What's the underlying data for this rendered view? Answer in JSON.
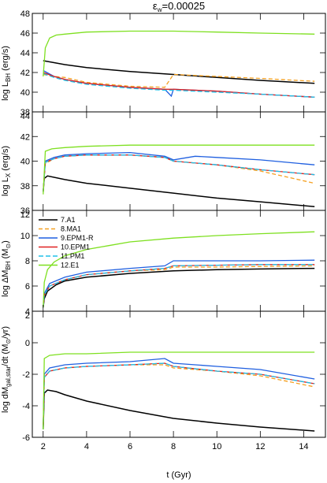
{
  "title": "ε_w=0.00025",
  "title_main": "ε",
  "title_sub": "w",
  "title_rest": "=0.00025",
  "xlabel": "t (Gyr)",
  "xlim": [
    1.5,
    15.0
  ],
  "xticks": [
    2,
    4,
    6,
    8,
    10,
    12,
    14
  ],
  "legend_panel": 2,
  "legend_location": "top-left",
  "chart_data": [
    {
      "type": "line",
      "ylabel": "log L_BH (erg/s)",
      "ylabel_main": "log L",
      "ylabel_sub": "BH",
      "ylabel_rest": " (erg/s)",
      "ylim": [
        38,
        48
      ],
      "yticks": [
        38,
        40,
        42,
        44,
        46,
        48
      ],
      "series": [
        {
          "id": "7.A1",
          "color": "#000000",
          "x": [
            2.0,
            2.5,
            3,
            4,
            6,
            8,
            10,
            12,
            14.5
          ],
          "y": [
            43.2,
            43.0,
            42.8,
            42.5,
            42.1,
            41.8,
            41.5,
            41.2,
            40.9
          ]
        },
        {
          "id": "8.MA1",
          "color": "#f5a020",
          "dash": "5,3",
          "x": [
            2.0,
            2.5,
            3,
            4,
            6,
            7.6,
            8,
            10,
            12,
            14.5
          ],
          "y": [
            41.8,
            41.6,
            41.5,
            41.0,
            40.6,
            40.5,
            41.8,
            41.6,
            41.4,
            41.1
          ]
        },
        {
          "id": "9.EPM1-R",
          "color": "#1f5fe0",
          "x": [
            2.0,
            2.5,
            3,
            4,
            6,
            7.6,
            7.9,
            8,
            10,
            12,
            14.5
          ],
          "y": [
            42.2,
            41.6,
            41.3,
            40.9,
            40.5,
            40.3,
            39.6,
            40.3,
            40.1,
            39.8,
            39.5
          ]
        },
        {
          "id": "10.EPM1",
          "color": "#e02020",
          "x": [
            2.0,
            2.5,
            3,
            4,
            6,
            7.6,
            8,
            10,
            12,
            14.5
          ],
          "y": [
            42.0,
            41.6,
            41.3,
            40.9,
            40.5,
            40.3,
            40.3,
            40.1,
            39.8,
            39.5
          ]
        },
        {
          "id": "11.PM1",
          "color": "#20c0e8",
          "dash": "6,3",
          "x": [
            2.0,
            2.5,
            3,
            4,
            6,
            7.6,
            8,
            10,
            12,
            14.5
          ],
          "y": [
            41.9,
            41.5,
            41.2,
            40.8,
            40.4,
            40.2,
            40.2,
            40.0,
            39.8,
            39.5
          ]
        },
        {
          "id": "12.E1",
          "color": "#7ee020",
          "x": [
            2.0,
            2.1,
            2.3,
            2.6,
            3,
            4,
            6,
            8,
            10,
            12,
            14.5
          ],
          "y": [
            41.6,
            44.5,
            45.5,
            45.8,
            45.9,
            46.1,
            46.2,
            46.2,
            46.1,
            46.0,
            45.9
          ]
        }
      ]
    },
    {
      "type": "line",
      "ylabel": "log L_X (erg/s)",
      "ylabel_main": "log L",
      "ylabel_sub": "X",
      "ylabel_rest": " (erg/s)",
      "ylim": [
        36,
        44
      ],
      "yticks": [
        36,
        38,
        40,
        42,
        44
      ],
      "series": [
        {
          "id": "7.A1",
          "color": "#000000",
          "x": [
            2.0,
            2.05,
            2.2,
            3,
            4,
            6,
            8,
            10,
            12,
            14.5
          ],
          "y": [
            37.5,
            38.6,
            38.8,
            38.5,
            38.2,
            37.8,
            37.4,
            37.0,
            36.7,
            36.3
          ]
        },
        {
          "id": "8.MA1",
          "color": "#f5a020",
          "dash": "5,3",
          "x": [
            2.0,
            2.1,
            2.5,
            3,
            4,
            6,
            7.6,
            8,
            10,
            12,
            14.5
          ],
          "y": [
            37.5,
            39.8,
            40.2,
            40.4,
            40.5,
            40.5,
            40.3,
            40.0,
            39.7,
            39.2,
            38.2
          ]
        },
        {
          "id": "9.EPM1-R",
          "color": "#1f5fe0",
          "x": [
            2.0,
            2.1,
            2.5,
            3,
            4,
            6,
            7.6,
            8,
            9,
            10,
            12,
            14.5
          ],
          "y": [
            37.5,
            40.0,
            40.3,
            40.5,
            40.6,
            40.7,
            40.4,
            40.1,
            40.4,
            40.3,
            40.1,
            39.7
          ]
        },
        {
          "id": "10.EPM1",
          "color": "#e02020",
          "x": [
            2.0,
            2.1,
            2.5,
            3,
            4,
            6,
            7.6,
            8,
            10,
            12,
            14.5
          ],
          "y": [
            37.5,
            39.9,
            40.2,
            40.4,
            40.5,
            40.5,
            40.3,
            40.0,
            39.7,
            39.3,
            38.9
          ]
        },
        {
          "id": "11.PM1",
          "color": "#20c0e8",
          "dash": "6,3",
          "x": [
            2.0,
            2.1,
            2.5,
            3,
            4,
            6,
            7.6,
            8,
            10,
            12,
            14.5
          ],
          "y": [
            37.5,
            39.9,
            40.2,
            40.4,
            40.5,
            40.5,
            40.3,
            40.0,
            39.7,
            39.3,
            38.9
          ]
        },
        {
          "id": "12.E1",
          "color": "#7ee020",
          "x": [
            2.0,
            2.1,
            2.4,
            3,
            4,
            6,
            8,
            10,
            12,
            14.5
          ],
          "y": [
            37.3,
            40.8,
            41.0,
            41.1,
            41.2,
            41.3,
            41.3,
            41.3,
            41.3,
            41.3
          ]
        }
      ]
    },
    {
      "type": "line",
      "ylabel": "log ΔM_BH (M_⊙)",
      "ylabel_main": "log ΔM",
      "ylabel_sub": "BH",
      "ylabel_rest": " (M",
      "ylabel_sub2": "⊙",
      "ylabel_end": ")",
      "ylim": [
        4,
        12
      ],
      "yticks": [
        4,
        6,
        8,
        10,
        12
      ],
      "legend": [
        "7.A1",
        "8.MA1",
        "9.EPM1-R",
        "10.EPM1",
        "11.PM1",
        "12.E1"
      ],
      "series": [
        {
          "id": "7.A1",
          "color": "#000000",
          "x": [
            2.0,
            2.05,
            2.2,
            2.6,
            3,
            4,
            6,
            8,
            10,
            12,
            14.5
          ],
          "y": [
            4.3,
            5.0,
            5.6,
            6.1,
            6.4,
            6.7,
            7.0,
            7.2,
            7.3,
            7.35,
            7.4
          ]
        },
        {
          "id": "8.MA1",
          "color": "#f5a020",
          "dash": "5,3",
          "x": [
            2.0,
            2.05,
            2.3,
            3,
            4,
            6,
            7.6,
            8,
            10,
            12,
            14.5
          ],
          "y": [
            4.3,
            5.3,
            6.0,
            6.5,
            6.9,
            7.2,
            7.3,
            7.5,
            7.5,
            7.55,
            7.6
          ]
        },
        {
          "id": "9.EPM1-R",
          "color": "#1f5fe0",
          "x": [
            2.0,
            2.05,
            2.3,
            3,
            4,
            6,
            7.6,
            8,
            10,
            12,
            14.5
          ],
          "y": [
            4.3,
            5.4,
            6.2,
            6.7,
            7.1,
            7.4,
            7.6,
            8.0,
            8.0,
            8.0,
            8.05
          ]
        },
        {
          "id": "10.EPM1",
          "color": "#e02020",
          "x": [
            2.0,
            2.05,
            2.3,
            3,
            4,
            6,
            7.6,
            8,
            10,
            12,
            14.5
          ],
          "y": [
            4.3,
            5.3,
            6.0,
            6.5,
            6.9,
            7.2,
            7.4,
            7.6,
            7.65,
            7.7,
            7.7
          ]
        },
        {
          "id": "11.PM1",
          "color": "#20c0e8",
          "dash": "6,3",
          "x": [
            2.0,
            2.05,
            2.3,
            3,
            4,
            6,
            7.6,
            8,
            10,
            12,
            14.5
          ],
          "y": [
            4.3,
            5.3,
            6.0,
            6.5,
            6.9,
            7.2,
            7.4,
            7.6,
            7.65,
            7.7,
            7.7
          ]
        },
        {
          "id": "12.E1",
          "color": "#7ee020",
          "x": [
            2.0,
            2.05,
            2.2,
            2.5,
            3,
            4,
            5,
            6,
            8,
            10,
            12,
            14.5
          ],
          "y": [
            4.3,
            6.3,
            7.3,
            7.9,
            8.4,
            8.9,
            9.2,
            9.5,
            9.8,
            10.0,
            10.15,
            10.3
          ]
        }
      ]
    },
    {
      "type": "line",
      "ylabel": "log dM_gal,star/dt (M_⊙/yr)",
      "ylabel_main": "log dM",
      "ylabel_sub": "gal,star",
      "ylabel_rest": "/dt (M",
      "ylabel_sub2": "⊙",
      "ylabel_end": "/yr)",
      "ylim": [
        -6,
        2
      ],
      "yticks": [
        -6,
        -4,
        -2,
        0,
        2
      ],
      "series": [
        {
          "id": "7.A1",
          "color": "#000000",
          "x": [
            2.0,
            2.05,
            2.2,
            2.6,
            3,
            4,
            6,
            8,
            10,
            12,
            14.5
          ],
          "y": [
            -5.5,
            -3.2,
            -3.0,
            -3.1,
            -3.3,
            -3.7,
            -4.3,
            -4.8,
            -5.1,
            -5.35,
            -5.6
          ]
        },
        {
          "id": "8.MA1",
          "color": "#f5a020",
          "dash": "5,3",
          "x": [
            2.0,
            2.05,
            2.3,
            3,
            4,
            6,
            7.6,
            8,
            10,
            12,
            14.5
          ],
          "y": [
            -5.5,
            -2.2,
            -1.8,
            -1.6,
            -1.5,
            -1.4,
            -1.4,
            -1.6,
            -1.8,
            -2.1,
            -2.8
          ]
        },
        {
          "id": "9.EPM1-R",
          "color": "#1f5fe0",
          "x": [
            2.0,
            2.05,
            2.3,
            3,
            4,
            6,
            7.6,
            8,
            10,
            12,
            14.5
          ],
          "y": [
            -5.5,
            -2.0,
            -1.6,
            -1.4,
            -1.3,
            -1.2,
            -1.0,
            -1.3,
            -1.5,
            -1.7,
            -2.3
          ]
        },
        {
          "id": "10.EPM1",
          "color": "#e02020",
          "x": [
            2.0,
            2.05,
            2.3,
            3,
            4,
            6,
            7.6,
            8,
            10,
            12,
            14.5
          ],
          "y": [
            -5.5,
            -2.2,
            -1.8,
            -1.6,
            -1.5,
            -1.4,
            -1.3,
            -1.5,
            -1.8,
            -2.0,
            -2.6
          ]
        },
        {
          "id": "11.PM1",
          "color": "#20c0e8",
          "dash": "6,3",
          "x": [
            2.0,
            2.05,
            2.3,
            3,
            4,
            6,
            7.6,
            8,
            10,
            12,
            14.5
          ],
          "y": [
            -5.5,
            -2.2,
            -1.8,
            -1.6,
            -1.5,
            -1.4,
            -1.3,
            -1.5,
            -1.8,
            -2.0,
            -2.6
          ]
        },
        {
          "id": "12.E1",
          "color": "#7ee020",
          "x": [
            2.0,
            2.05,
            2.3,
            3,
            4,
            6,
            8,
            10,
            12,
            14.5
          ],
          "y": [
            -5.5,
            -1.0,
            -0.8,
            -0.7,
            -0.7,
            -0.6,
            -0.6,
            -0.6,
            -0.6,
            -0.6
          ]
        }
      ]
    }
  ]
}
